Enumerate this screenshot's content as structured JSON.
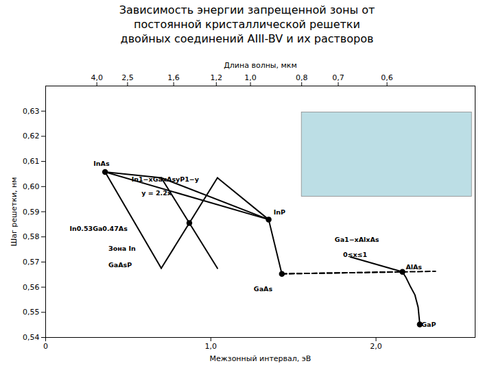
{
  "chart_data": {
    "type": "line",
    "title": "Зависимость энергии запрещенной зоны от\nпостоянной кристаллической решетки\nдвойных соединений AIII-BV и их растворов",
    "xlabel": "Межзонный интервал, эВ",
    "ylabel": "Шаг решетки, нм",
    "x2label": "Длина волны, мкм",
    "xlim": [
      0,
      2.6
    ],
    "ylim": [
      0.54,
      0.64
    ],
    "xticks": [
      0,
      {
        "value": 1.0,
        "label": "1,0"
      },
      {
        "value": 2.0,
        "label": "2,0"
      }
    ],
    "yticks": [
      {
        "value": 0.54,
        "label": "0,54"
      },
      {
        "value": 0.55,
        "label": "0,55"
      },
      {
        "value": 0.56,
        "label": "0,56"
      },
      {
        "value": 0.57,
        "label": "0,57"
      },
      {
        "value": 0.58,
        "label": "0,58"
      },
      {
        "value": 0.59,
        "label": "0,59"
      },
      {
        "value": 0.6,
        "label": "0,60"
      },
      {
        "value": 0.61,
        "label": "0,61"
      },
      {
        "value": 0.62,
        "label": "0,62"
      },
      {
        "value": 0.63,
        "label": "0,63"
      }
    ],
    "x2ticks": [
      {
        "value": 0.31,
        "label": "4,0"
      },
      {
        "value": 0.496,
        "label": "2,5"
      },
      {
        "value": 0.775,
        "label": "1,6"
      },
      {
        "value": 1.0333333333333334,
        "label": "1,2"
      },
      {
        "value": 1.24,
        "label": "1,0"
      },
      {
        "value": 1.55,
        "label": "0,8"
      },
      {
        "value": 1.7714285714285714,
        "label": "0,7"
      },
      {
        "value": 2.066666666666667,
        "label": "0,6"
      }
    ],
    "grid": false,
    "color": "#000000",
    "regions": [
      {
        "x1": 1.55,
        "x2": 2.58,
        "y1": 0.596,
        "y2": 0.6295,
        "color": "#b0d8e0"
      }
    ],
    "series": [
      {
        "x": [
          0.36,
          1.35
        ],
        "values": [
          0.6058,
          0.5869
        ],
        "line_style": "solid"
      },
      {
        "x": [
          0.36,
          0.7
        ],
        "values": [
          0.6058,
          0.6035
        ],
        "line_style": "solid"
      },
      {
        "x": [
          0.36,
          0.7
        ],
        "values": [
          0.6058,
          0.5675
        ],
        "line_style": "solid"
      },
      {
        "x": [
          0.7,
          1.04
        ],
        "values": [
          0.6035,
          0.5675
        ],
        "line_style": "solid"
      },
      {
        "x": [
          0.7,
          1.04
        ],
        "values": [
          0.5675,
          0.6035
        ],
        "line_style": "solid"
      },
      {
        "x": [
          1.04,
          1.35
        ],
        "values": [
          0.6035,
          0.5869
        ],
        "line_style": "solid"
      },
      {
        "x": [
          0.7,
          1.35
        ],
        "values": [
          0.6035,
          0.5869
        ],
        "line_style": "solid"
      },
      {
        "x": [
          1.35,
          1.43
        ],
        "values": [
          0.5869,
          0.5653
        ],
        "line_style": "solid"
      },
      {
        "x": [
          1.845,
          2.16
        ],
        "values": [
          0.572,
          0.5661
        ],
        "line_style": "solid"
      },
      {
        "x": [
          1.43,
          2.16
        ],
        "values": [
          0.5653,
          0.5661
        ],
        "line_style": "dashed"
      },
      {
        "x": [
          2.16,
          2.18,
          2.21,
          2.235,
          2.255,
          2.265
        ],
        "values": [
          0.5661,
          0.564,
          0.56,
          0.557,
          0.552,
          0.5452
        ],
        "line_style": "solid"
      },
      {
        "x": [
          1.43,
          2.36
        ],
        "values": [
          0.5653,
          0.5663
        ],
        "line_style": "dashed"
      }
    ],
    "points": {
      "x": [
        0.36,
        1.35,
        1.43,
        2.16,
        2.265,
        0.87
      ],
      "values": [
        0.6058,
        0.5869,
        0.5653,
        0.5661,
        0.5452,
        0.5855
      ],
      "marker": "circle"
    },
    "annotations": [
      {
        "text": "InAs",
        "x": 0.29,
        "y": 0.6083
      },
      {
        "text": "InP",
        "x": 1.38,
        "y": 0.5889
      },
      {
        "text": "GaAs",
        "x": 1.26,
        "y": 0.5583
      },
      {
        "text": "AlAs",
        "x": 2.18,
        "y": 0.5671
      },
      {
        "text": "GaP",
        "x": 2.275,
        "y": 0.5442
      },
      {
        "text": "In1−xGaxAsyP1−y",
        "x": 0.52,
        "y": 0.602
      },
      {
        "text": "y = 2.2x",
        "x": 0.58,
        "y": 0.5965
      },
      {
        "text": "In0.53Ga0.47As",
        "x": 0.145,
        "y": 0.5825
      },
      {
        "text": "Зона In",
        "x": 0.38,
        "y": 0.5745
      },
      {
        "text": "GaAsP",
        "x": 0.38,
        "y": 0.568
      },
      {
        "text": "Ga1−xAlxAs",
        "x": 1.75,
        "y": 0.578
      },
      {
        "text": "0≤x≤1",
        "x": 1.8,
        "y": 0.572
      }
    ]
  }
}
